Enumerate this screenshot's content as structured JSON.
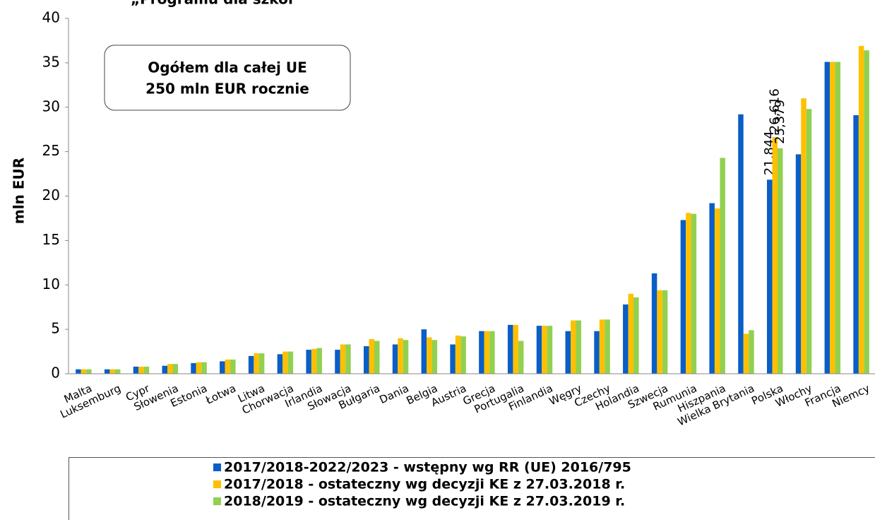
{
  "chart_data": {
    "type": "bar",
    "title": "„Programu dla szkół",
    "y_label": "mln EUR",
    "annotations": [
      "Ogółem dla całej UE",
      "250 mln EUR rocznie"
    ],
    "categories": [
      "Malta",
      "Luksemburg",
      "Cypr",
      "Słowenia",
      "Estonia",
      "Łotwa",
      "Litwa",
      "Chorwacja",
      "Irlandia",
      "Słowacja",
      "Bułgaria",
      "Dania",
      "Belgia",
      "Austria",
      "Grecja",
      "Portugalia",
      "Finlandia",
      "Węgry",
      "Czechy",
      "Holandia",
      "Szwecja",
      "Rumunia",
      "Hiszpania",
      "Wielka Brytania",
      "Polska",
      "Włochy",
      "Francja",
      "Niemcy"
    ],
    "series": [
      {
        "name": "2017/2018-2022/2023 - wstępny wg RR (UE) 2016/795",
        "color": "#0a5ec6",
        "values": [
          0.5,
          0.5,
          0.8,
          0.9,
          1.2,
          1.4,
          2.0,
          2.2,
          2.7,
          2.7,
          3.1,
          3.3,
          5.0,
          3.3,
          4.8,
          5.5,
          5.4,
          4.8,
          4.8,
          7.8,
          11.3,
          17.3,
          19.2,
          29.2,
          21.844,
          24.7,
          35.1,
          29.1
        ],
        "value_labels": [
          null,
          null,
          null,
          null,
          null,
          null,
          null,
          null,
          null,
          null,
          null,
          null,
          null,
          null,
          null,
          null,
          null,
          null,
          null,
          null,
          null,
          null,
          null,
          null,
          "21,844",
          null,
          null,
          null
        ]
      },
      {
        "name": "2017/2018 - ostateczny wg decyzji KE z 27.03.2018 r.",
        "color": "#ffc000",
        "values": [
          0.5,
          0.5,
          0.8,
          1.1,
          1.3,
          1.6,
          2.3,
          2.5,
          2.8,
          3.3,
          3.9,
          4.0,
          4.1,
          4.3,
          4.8,
          5.5,
          5.4,
          6.0,
          6.1,
          9.0,
          9.4,
          18.1,
          18.6,
          4.5,
          26.616,
          31.0,
          35.1,
          36.9
        ],
        "value_labels": [
          null,
          null,
          null,
          null,
          null,
          null,
          null,
          null,
          null,
          null,
          null,
          null,
          null,
          null,
          null,
          null,
          null,
          null,
          null,
          null,
          null,
          null,
          null,
          null,
          "26,616",
          null,
          null,
          null
        ]
      },
      {
        "name": "2018/2019 - ostateczny wg decyzji KE z 27.03.2019 r.",
        "color": "#92d050",
        "values": [
          0.5,
          0.5,
          0.8,
          1.1,
          1.3,
          1.6,
          2.3,
          2.5,
          2.9,
          3.3,
          3.7,
          3.8,
          3.8,
          4.2,
          4.8,
          3.7,
          5.4,
          6.0,
          6.1,
          8.6,
          9.4,
          18.0,
          24.3,
          4.9,
          25.379,
          29.8,
          35.1,
          36.4
        ],
        "value_labels": [
          null,
          null,
          null,
          null,
          null,
          null,
          null,
          null,
          null,
          null,
          null,
          null,
          null,
          null,
          null,
          null,
          null,
          null,
          null,
          null,
          null,
          null,
          null,
          null,
          "25,379",
          null,
          null,
          null
        ]
      }
    ],
    "ylim": [
      0,
      40
    ],
    "yticks": [
      0,
      5,
      10,
      15,
      20,
      25,
      30,
      35,
      40
    ],
    "grid": false,
    "legend": "bottom"
  }
}
